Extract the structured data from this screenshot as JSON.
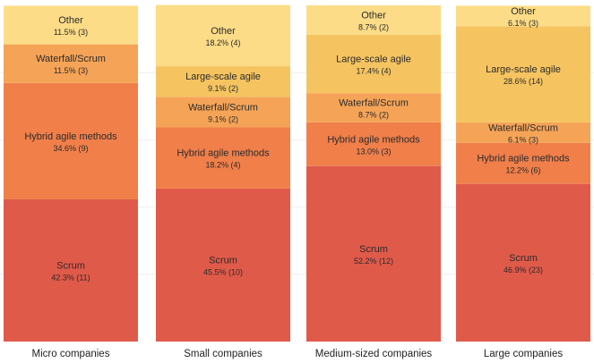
{
  "chart_data": {
    "type": "bar",
    "stacked": true,
    "normalized": true,
    "categories": [
      "Micro companies",
      "Small companies",
      "Medium-sized companies",
      "Large companies"
    ],
    "series": [
      {
        "name": "Scrum",
        "color": "#e05a4a",
        "values": [
          42.3,
          45.5,
          52.2,
          46.9
        ],
        "labels": [
          "42.3% (11)",
          "45.5% (10)",
          "52.2% (12)",
          "46.9% (23)"
        ]
      },
      {
        "name": "Hybrid agile methods",
        "color": "#f07f4a",
        "values": [
          34.6,
          18.2,
          13.0,
          12.2
        ],
        "labels": [
          "34.6% (9)",
          "18.2% (4)",
          "13.0% (3)",
          "12.2% (6)"
        ]
      },
      {
        "name": "Waterfall/Scrum",
        "color": "#f5a457",
        "values": [
          11.5,
          9.1,
          8.7,
          6.1
        ],
        "labels": [
          "11.5% (3)",
          "9.1% (2)",
          "8.7% (2)",
          "6.1% (3)"
        ]
      },
      {
        "name": "Large-scale agile",
        "color": "#f5c460",
        "values": [
          null,
          9.1,
          17.4,
          28.6
        ],
        "labels": [
          null,
          "9.1% (2)",
          "17.4% (4)",
          "28.6% (14)"
        ]
      },
      {
        "name": "Other",
        "color": "#fcdc86",
        "values": [
          11.5,
          18.2,
          8.7,
          6.1
        ],
        "labels": [
          "11.5% (3)",
          "18.2% (4)",
          "8.7% (2)",
          "6.1% (3)"
        ]
      }
    ],
    "ylim": [
      0,
      100
    ],
    "grid": true,
    "legend": "none"
  }
}
